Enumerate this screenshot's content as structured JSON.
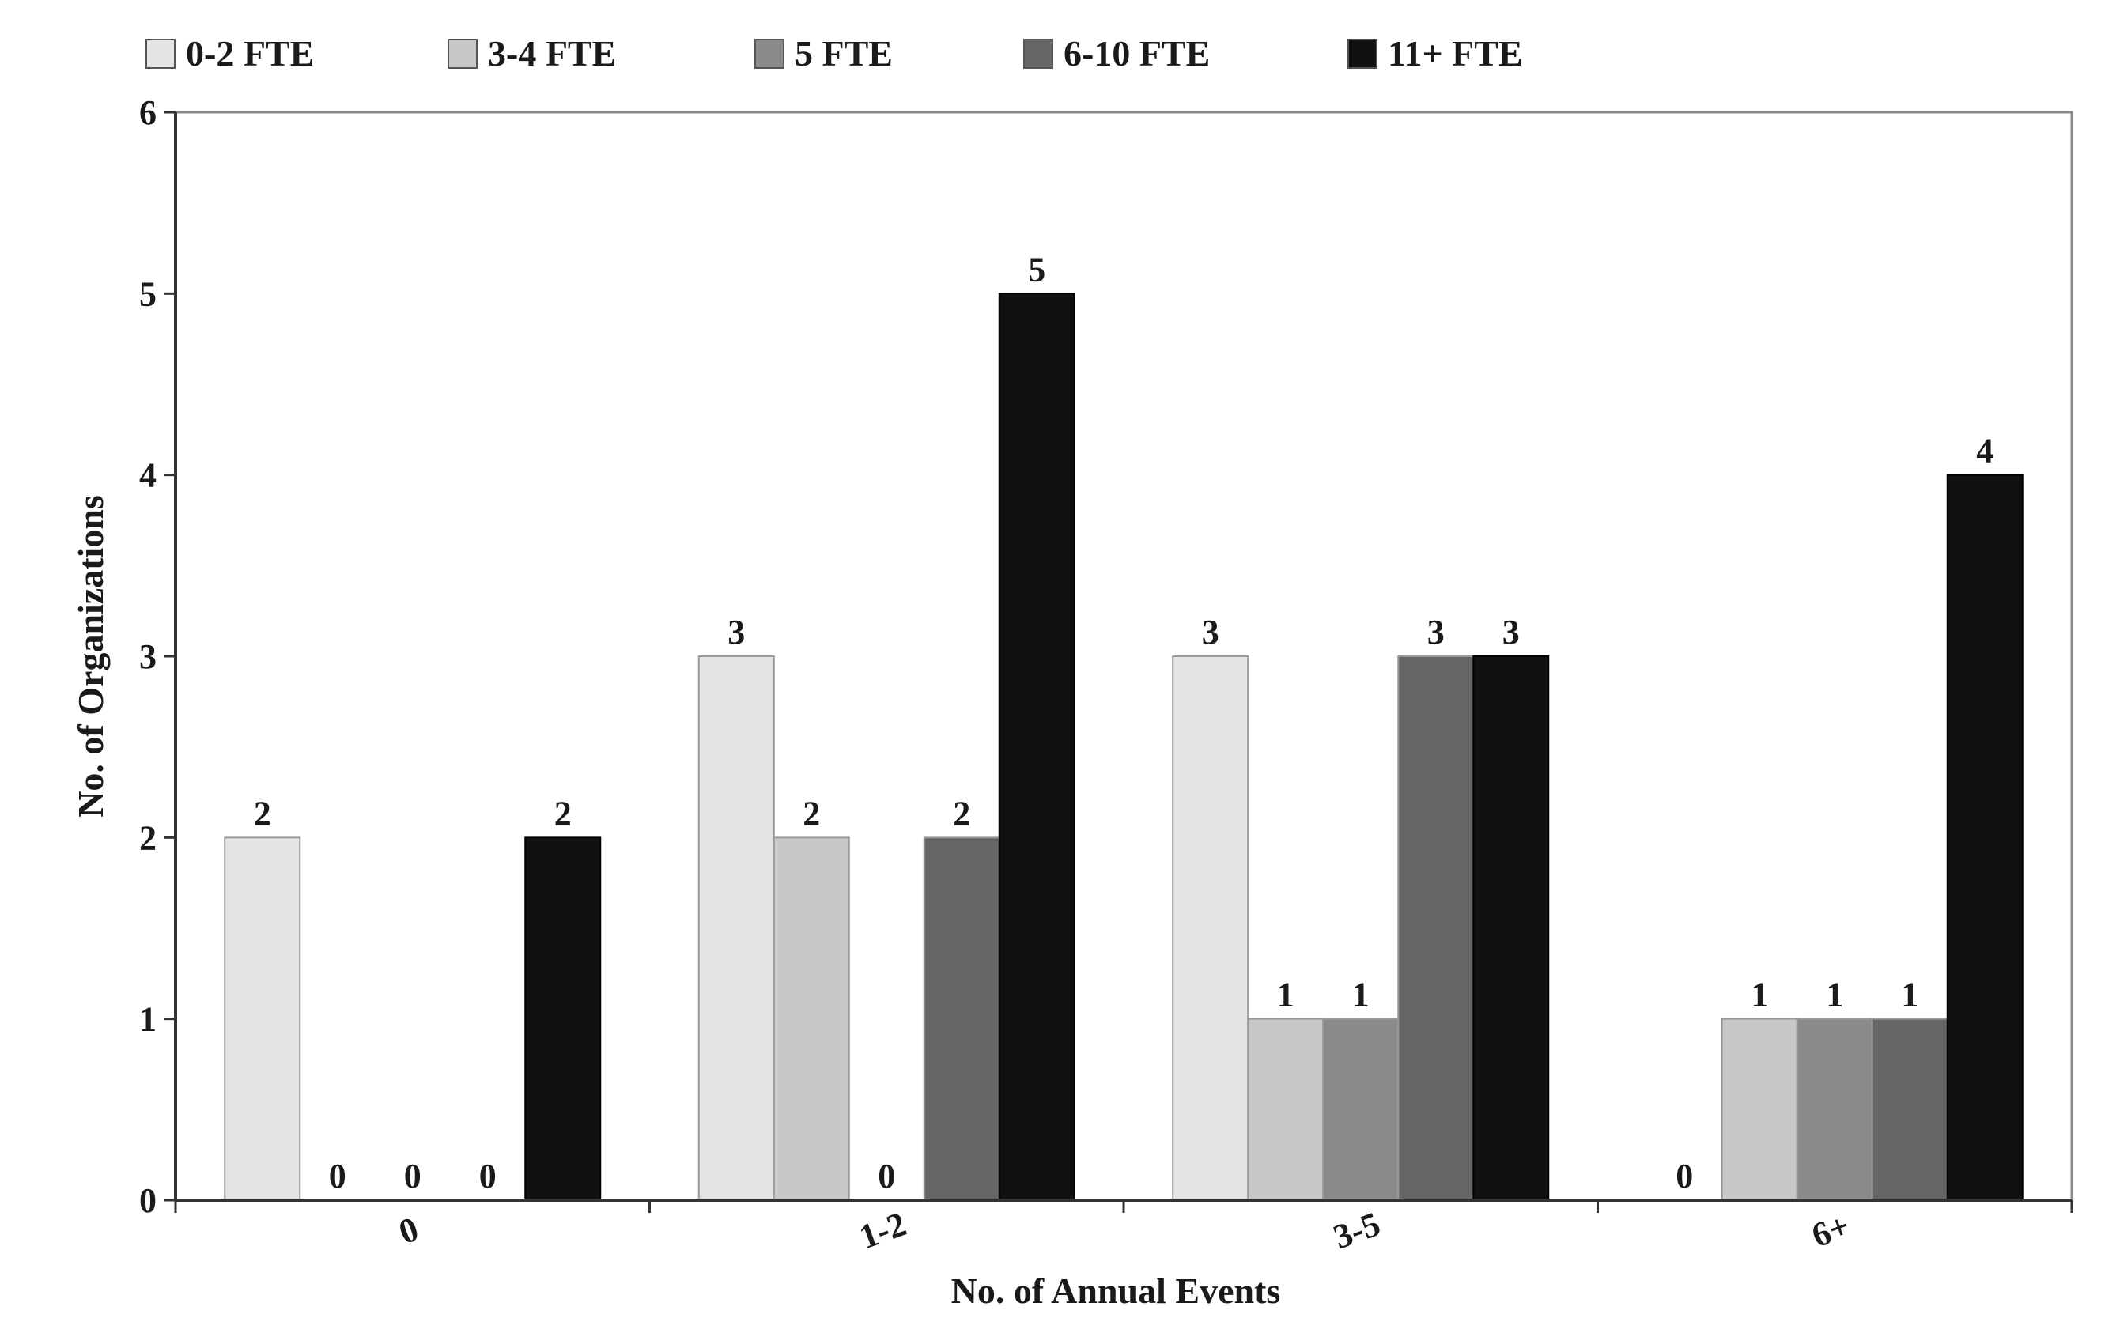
{
  "chart_data": {
    "type": "bar",
    "xlabel": "No. of Annual Events",
    "ylabel": "No. of Organizations",
    "categories": [
      "0",
      "1-2",
      "3-5",
      "6+"
    ],
    "ylim": [
      0,
      6
    ],
    "yticks": [
      0,
      1,
      2,
      3,
      4,
      5,
      6
    ],
    "grid": false,
    "legend_position": "top",
    "series": [
      {
        "name": "0-2 FTE",
        "values": [
          2,
          3,
          3,
          0
        ],
        "color": "#e4e4e4"
      },
      {
        "name": "3-4 FTE",
        "values": [
          0,
          2,
          1,
          1
        ],
        "color": "#c8c8c8"
      },
      {
        "name": "5 FTE",
        "values": [
          0,
          0,
          1,
          1
        ],
        "color": "#8a8a8a"
      },
      {
        "name": "6-10 FTE",
        "values": [
          0,
          2,
          3,
          1
        ],
        "color": "#666666"
      },
      {
        "name": "11+ FTE",
        "values": [
          2,
          5,
          3,
          4
        ],
        "color": "#111111"
      }
    ]
  }
}
